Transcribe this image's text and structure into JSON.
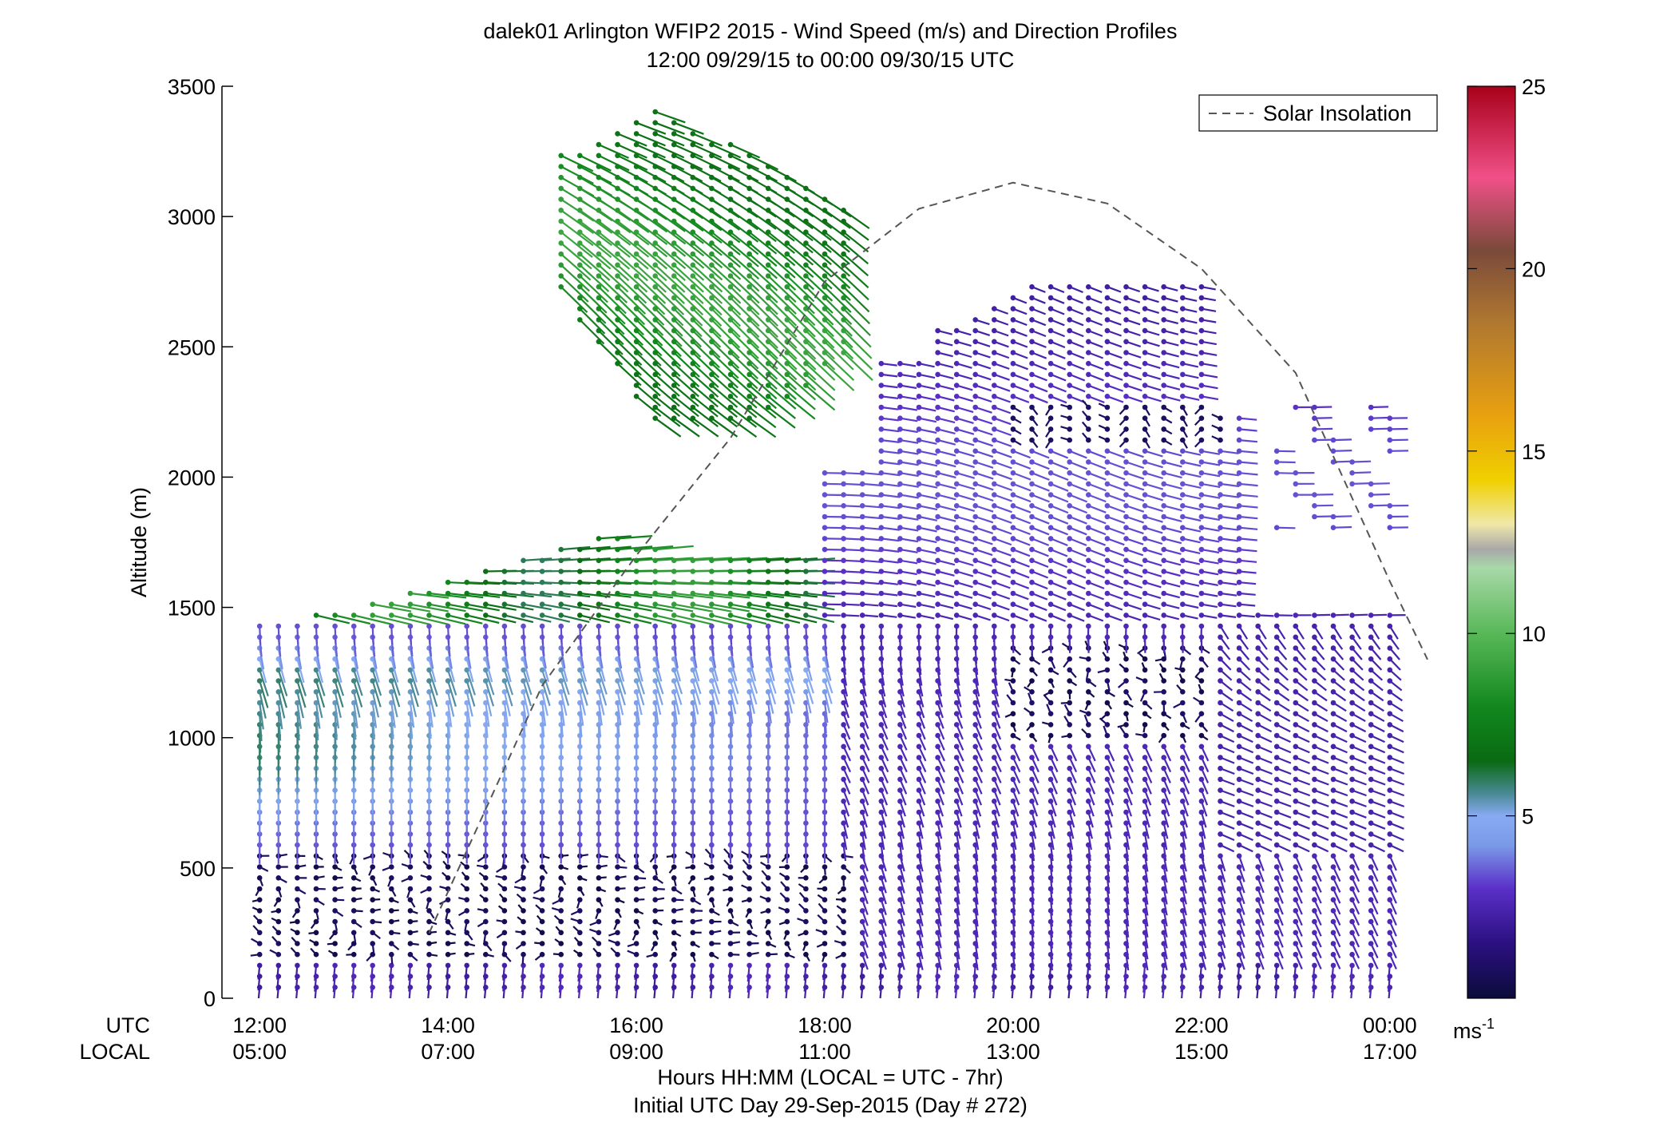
{
  "chart_data": {
    "type": "wind-barb-profile",
    "title": "dalek01 Arlington WFIP2 2015 - Wind Speed (m/s) and Direction Profiles",
    "subtitle": "12:00 09/29/15 to 00:00 09/30/15  UTC",
    "ylabel": "Altitude (m)",
    "ylim": [
      0,
      3500
    ],
    "yticks": [
      0,
      500,
      1000,
      1500,
      2000,
      2500,
      3000,
      3500
    ],
    "xlim_hours": [
      11.6,
      24.4
    ],
    "xticks_hours": [
      12,
      14,
      16,
      18,
      20,
      22,
      24
    ],
    "xtick_labels_utc": [
      "12:00",
      "14:00",
      "16:00",
      "18:00",
      "20:00",
      "22:00",
      "00:00"
    ],
    "xtick_labels_local": [
      "05:00",
      "07:00",
      "09:00",
      "11:00",
      "13:00",
      "15:00",
      "17:00"
    ],
    "xrow_label_utc": "UTC",
    "xrow_label_local": "LOCAL",
    "xlabel": "Hours HH:MM  (LOCAL = UTC - 7hr)",
    "xlabel2": "Initial UTC Day 29-Sep-2015 (Day # 272)",
    "legend": {
      "label": "Solar Insolation",
      "position": "top-right",
      "style": "dashed"
    },
    "solar_insolation": {
      "hours": [
        13.8,
        15.0,
        16.0,
        17.0,
        18.0,
        19.0,
        20.0,
        21.0,
        22.0,
        23.0,
        24.0,
        24.4
      ],
      "altitude": [
        250,
        1200,
        1700,
        2150,
        2750,
        3030,
        3130,
        3050,
        2800,
        2400,
        1600,
        1300
      ]
    },
    "colorbar": {
      "min": 0,
      "max": 25,
      "ticks": [
        5,
        10,
        15,
        20,
        25
      ],
      "unit_label": "ms",
      "unit_exponent": "-1",
      "stops": [
        {
          "v": 0,
          "c": "#0b0b3b"
        },
        {
          "v": 1.5,
          "c": "#2b1080"
        },
        {
          "v": 3,
          "c": "#5a2fc8"
        },
        {
          "v": 4.2,
          "c": "#7a9ae8"
        },
        {
          "v": 5,
          "c": "#88aaf2"
        },
        {
          "v": 5.6,
          "c": "#4a8a96"
        },
        {
          "v": 6.5,
          "c": "#0a6a12"
        },
        {
          "v": 8,
          "c": "#12881e"
        },
        {
          "v": 10,
          "c": "#58b858"
        },
        {
          "v": 11.8,
          "c": "#a8d8a8"
        },
        {
          "v": 12.3,
          "c": "#a8a8a8"
        },
        {
          "v": 13,
          "c": "#f0e8a8"
        },
        {
          "v": 14.2,
          "c": "#f0d000"
        },
        {
          "v": 16,
          "c": "#e8a010"
        },
        {
          "v": 18.5,
          "c": "#b07830"
        },
        {
          "v": 20.5,
          "c": "#7a4a3a"
        },
        {
          "v": 22.5,
          "c": "#f05088"
        },
        {
          "v": 25,
          "c": "#a8001a"
        }
      ]
    },
    "observations": {
      "time_step_hours": 0.2,
      "altitude_step_m": 42,
      "note_regions": [
        {
          "hours": [
            12.0,
            24.0
          ],
          "altitude": [
            0,
            150
          ],
          "speed": 2.5,
          "direction": "westerly"
        },
        {
          "hours": [
            12.0,
            18.2
          ],
          "altitude": [
            150,
            550
          ],
          "speed": 0.8,
          "direction": "variable"
        },
        {
          "hours": [
            12.0,
            17.5
          ],
          "altitude": [
            550,
            850
          ],
          "speed": 4.5,
          "direction": "westerly"
        },
        {
          "hours": [
            12.0,
            16.5
          ],
          "altitude": [
            850,
            1150
          ],
          "speed": 6.0,
          "direction": "westerly"
        },
        {
          "hours": [
            12.0,
            17.5
          ],
          "altitude": [
            1150,
            1350
          ],
          "speed": 4.8,
          "direction": "westerly"
        },
        {
          "hours": [
            13.0,
            17.8
          ],
          "altitude": [
            1350,
            1800
          ],
          "speed": 8.0,
          "direction": "southerly"
        },
        {
          "hours": [
            15.0,
            18.2
          ],
          "altitude": [
            2200,
            3450
          ],
          "speed": 8.5,
          "direction": "southwesterly"
        },
        {
          "hours": [
            18.0,
            22.5
          ],
          "altitude": [
            1350,
            2800
          ],
          "speed": 2.8,
          "direction": "southerly"
        },
        {
          "hours": [
            19.8,
            22.2
          ],
          "altitude": [
            1000,
            1350
          ],
          "speed": 1.2,
          "direction": "variable"
        },
        {
          "hours": [
            22.0,
            24.0
          ],
          "altitude": [
            150,
            1450
          ],
          "speed": 2.5,
          "direction": "northwesterly"
        }
      ]
    }
  }
}
